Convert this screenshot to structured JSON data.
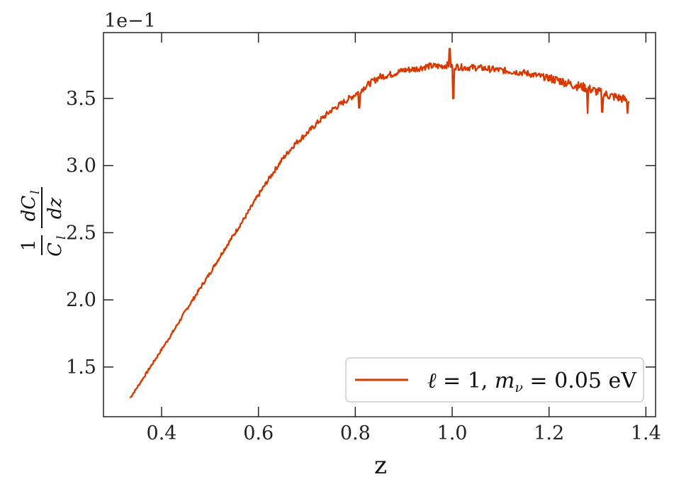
{
  "chart_data": {
    "type": "line",
    "xlabel": "z",
    "ylabel": {
      "numerator_1": "1",
      "denominator_1": "C",
      "denominator_1_sub": "l",
      "numerator_2": "dC",
      "numerator_2_sub": "l",
      "denominator_2": "dz"
    },
    "y_scale_label": "1e−1",
    "xlim": [
      0.28,
      1.42
    ],
    "ylim": [
      1.13,
      3.99
    ],
    "x_ticks": [
      0.4,
      0.6,
      0.8,
      1.0,
      1.2,
      1.4
    ],
    "x_tick_labels": [
      "0.4",
      "0.6",
      "0.8",
      "1.0",
      "1.2",
      "1.4"
    ],
    "y_ticks": [
      1.5,
      2.0,
      2.5,
      3.0,
      3.5
    ],
    "y_tick_labels": [
      "1.5",
      "2.0",
      "2.5",
      "3.0",
      "3.5"
    ],
    "grid": false,
    "legend_position": "lower-right",
    "series": [
      {
        "name_parts": {
          "ell": "ℓ",
          "eq1": " = 1, ",
          "m": "m",
          "nu": "ν",
          "eq2": " = ",
          "value": "0.05",
          "unit": " eV"
        },
        "color": "#d63a00",
        "x": [
          0.335,
          0.35,
          0.375,
          0.4,
          0.425,
          0.45,
          0.475,
          0.5,
          0.525,
          0.55,
          0.575,
          0.6,
          0.625,
          0.65,
          0.675,
          0.7,
          0.725,
          0.75,
          0.775,
          0.8,
          0.825,
          0.85,
          0.875,
          0.9,
          0.925,
          0.95,
          0.975,
          0.995,
          1.0,
          1.025,
          1.05,
          1.075,
          1.1,
          1.125,
          1.15,
          1.175,
          1.2,
          1.225,
          1.25,
          1.275,
          1.3,
          1.325,
          1.35,
          1.365
        ],
        "y": [
          1.27,
          1.35,
          1.49,
          1.63,
          1.77,
          1.92,
          2.06,
          2.2,
          2.35,
          2.49,
          2.63,
          2.78,
          2.92,
          3.05,
          3.16,
          3.24,
          3.33,
          3.41,
          3.47,
          3.53,
          3.6,
          3.66,
          3.68,
          3.71,
          3.72,
          3.74,
          3.74,
          3.75,
          3.74,
          3.73,
          3.73,
          3.72,
          3.71,
          3.7,
          3.69,
          3.67,
          3.65,
          3.63,
          3.6,
          3.58,
          3.55,
          3.52,
          3.5,
          3.48
        ],
        "noise_amplitude": 0.04,
        "spikes": [
          {
            "x": 0.808,
            "y": 3.43
          },
          {
            "x": 0.995,
            "y": 3.87
          },
          {
            "x": 1.002,
            "y": 3.5
          },
          {
            "x": 1.28,
            "y": 3.39
          },
          {
            "x": 1.31,
            "y": 3.4
          },
          {
            "x": 1.362,
            "y": 3.39
          }
        ]
      }
    ]
  }
}
